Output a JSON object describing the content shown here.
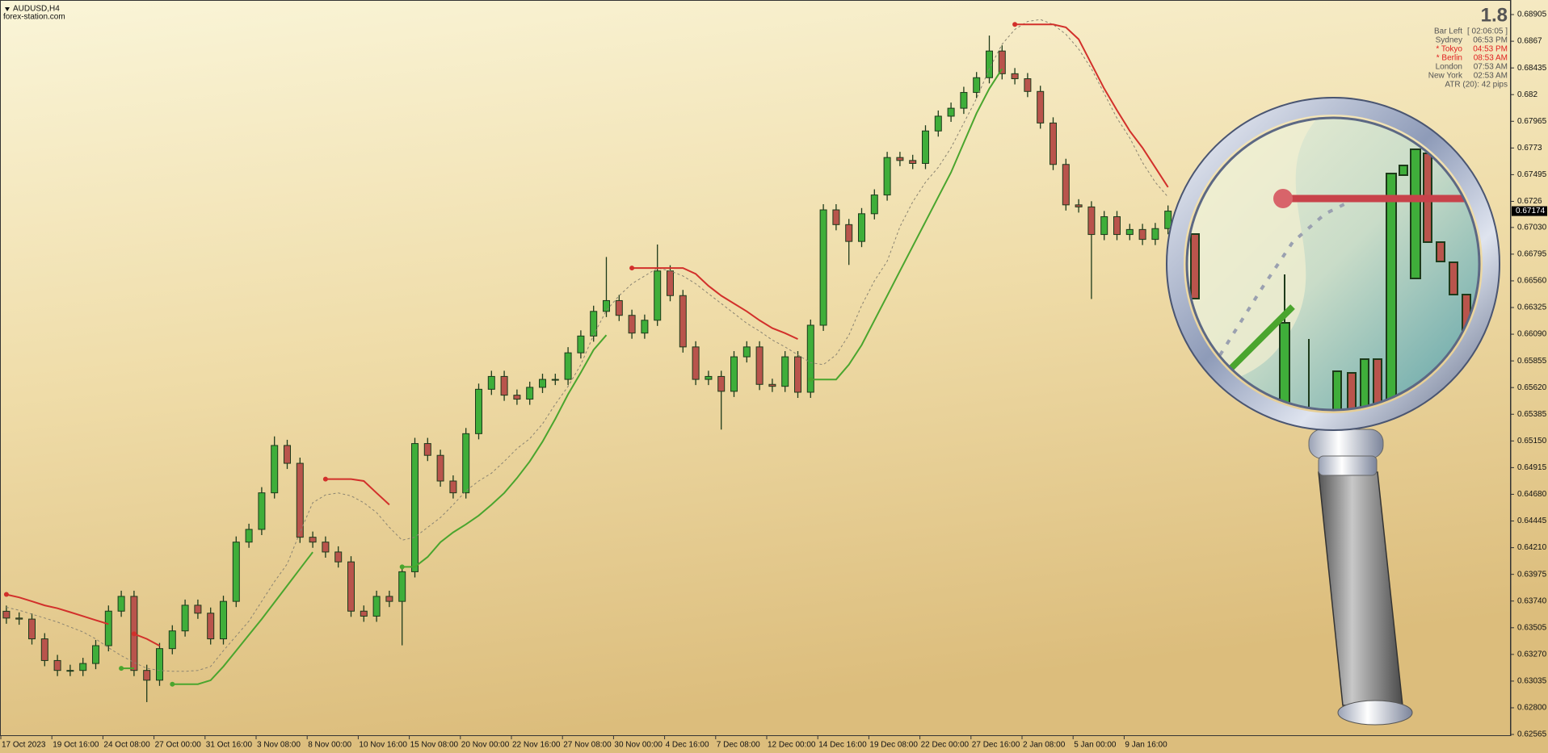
{
  "chart_data": {
    "type": "candlestick",
    "symbol": "AUDUSD,H4",
    "source": "forex-station.com",
    "categories": [
      "17 Oct 2023",
      null,
      null,
      null,
      "19 Oct 16:00",
      null,
      null,
      null,
      "24 Oct 08:00",
      null,
      null,
      null,
      "27 Oct 00:00",
      null,
      null,
      null,
      "31 Oct 16:00",
      null,
      null,
      null,
      "3 Nov 08:00",
      null,
      null,
      null,
      "8 Nov 00:00",
      null,
      null,
      null,
      "10 Nov 16:00",
      null,
      null,
      null,
      "15 Nov 08:00",
      null,
      null,
      null,
      "20 Nov 00:00",
      null,
      null,
      null,
      "22 Nov 16:00",
      null,
      null,
      null,
      "27 Nov 08:00",
      null,
      null,
      null,
      "30 Nov 00:00",
      null,
      null,
      null,
      "4 Dec 16:00",
      null,
      null,
      null,
      "7 Dec 08:00",
      null,
      null,
      null,
      "12 Dec 00:00",
      null,
      null,
      null,
      "14 Dec 16:00",
      null,
      null,
      null,
      "19 Dec 08:00",
      null,
      null,
      null,
      "22 Dec 00:00",
      null,
      null,
      null,
      "27 Dec 16:00",
      null,
      null,
      null,
      "2 Jan 08:00",
      null,
      null,
      null,
      "5 Jan 00:00",
      null,
      null,
      null,
      "9 Jan 16:00",
      null,
      null,
      null
    ],
    "open": [
      0.6365,
      0.6359,
      0.63581,
      0.63407,
      0.63216,
      0.63129,
      0.63129,
      0.6319,
      0.63347,
      0.63651,
      0.63781,
      0.63129,
      0.63043,
      0.63321,
      0.63477,
      0.63703,
      0.63633,
      0.63407,
      0.63737,
      0.64259,
      0.64371,
      0.64693,
      0.6511,
      0.64953,
      0.64302,
      0.64259,
      0.64172,
      0.64085,
      0.63651,
      0.63607,
      0.63781,
      0.63737,
      0.63998,
      0.65127,
      0.65023,
      0.64797,
      0.64693,
      0.65214,
      0.65605,
      0.65718,
      0.65553,
      0.65518,
      0.65622,
      0.65692,
      0.65692,
      0.65926,
      0.66074,
      0.66291,
      0.66386,
      0.66256,
      0.661,
      0.66213,
      0.66647,
      0.6643,
      0.65978,
      0.65692,
      0.65718,
      0.65587,
      0.65891,
      0.65978,
      0.65648,
      0.65631,
      0.65891,
      0.65579,
      0.66169,
      0.67185,
      0.67055,
      0.66907,
      0.67151,
      0.67316,
      0.67646,
      0.6762,
      0.67594,
      0.6788,
      0.6801,
      0.6808,
      0.68219,
      0.68349,
      0.68584,
      0.68384,
      0.6834,
      0.68228,
      0.6795,
      0.67585,
      0.67229,
      0.67211,
      0.66968,
      0.67125,
      0.66968,
      0.67012,
      0.66925,
      0.6702
    ],
    "high": [
      0.637,
      0.6364,
      0.63631,
      0.63457,
      0.63266,
      0.63179,
      0.6324,
      0.63397,
      0.63701,
      0.63831,
      0.63831,
      0.63179,
      0.63371,
      0.63527,
      0.63753,
      0.63753,
      0.63683,
      0.63787,
      0.64309,
      0.64421,
      0.64743,
      0.6519,
      0.6516,
      0.65003,
      0.64352,
      0.64309,
      0.64222,
      0.64135,
      0.63701,
      0.63831,
      0.63831,
      0.64048,
      0.65177,
      0.65177,
      0.65073,
      0.64847,
      0.65264,
      0.65655,
      0.65768,
      0.65768,
      0.65603,
      0.65672,
      0.65742,
      0.65742,
      0.65976,
      0.66124,
      0.66341,
      0.6677,
      0.66436,
      0.66306,
      0.66263,
      0.6688,
      0.66697,
      0.6648,
      0.66028,
      0.65768,
      0.65768,
      0.65941,
      0.66028,
      0.66028,
      0.65698,
      0.65941,
      0.65941,
      0.66219,
      0.67235,
      0.67235,
      0.67105,
      0.67201,
      0.67366,
      0.67696,
      0.67696,
      0.6767,
      0.6793,
      0.6806,
      0.6813,
      0.68269,
      0.68399,
      0.6872,
      0.68634,
      0.68434,
      0.6839,
      0.68278,
      0.68,
      0.67635,
      0.67279,
      0.67261,
      0.67175,
      0.67175,
      0.67062,
      0.67062,
      0.6707,
      0.67224
    ],
    "low": [
      0.6354,
      0.63531,
      0.63357,
      0.63166,
      0.63079,
      0.63079,
      0.63079,
      0.6314,
      0.63297,
      0.63601,
      0.63079,
      0.6285,
      0.62993,
      0.63271,
      0.63427,
      0.63583,
      0.63357,
      0.63357,
      0.63687,
      0.64209,
      0.64321,
      0.64643,
      0.64903,
      0.64252,
      0.64209,
      0.64122,
      0.64035,
      0.63601,
      0.63557,
      0.63557,
      0.63687,
      0.6335,
      0.63948,
      0.64973,
      0.64747,
      0.64643,
      0.64643,
      0.65164,
      0.65555,
      0.65503,
      0.65468,
      0.65468,
      0.65572,
      0.65642,
      0.65642,
      0.65876,
      0.66024,
      0.66241,
      0.66206,
      0.6605,
      0.6605,
      0.66163,
      0.6638,
      0.65928,
      0.65642,
      0.65642,
      0.6525,
      0.65537,
      0.65841,
      0.65598,
      0.65581,
      0.65581,
      0.65529,
      0.65529,
      0.66119,
      0.67005,
      0.667,
      0.66857,
      0.67101,
      0.67266,
      0.6757,
      0.67544,
      0.67544,
      0.6783,
      0.6796,
      0.6803,
      0.68169,
      0.68299,
      0.68334,
      0.6829,
      0.68178,
      0.679,
      0.67535,
      0.67179,
      0.67161,
      0.664,
      0.66918,
      0.66918,
      0.66918,
      0.66875,
      0.66875,
      0.6697
    ],
    "close": [
      0.6359,
      0.63581,
      0.63407,
      0.63216,
      0.63129,
      0.63129,
      0.6319,
      0.63347,
      0.63651,
      0.63781,
      0.63129,
      0.63043,
      0.63321,
      0.63477,
      0.63703,
      0.63633,
      0.63407,
      0.63737,
      0.64259,
      0.64371,
      0.64693,
      0.6511,
      0.64953,
      0.64302,
      0.64259,
      0.64172,
      0.64085,
      0.63651,
      0.63607,
      0.63781,
      0.63737,
      0.63998,
      0.65127,
      0.65023,
      0.64797,
      0.64693,
      0.65214,
      0.65605,
      0.65718,
      0.65553,
      0.65518,
      0.65622,
      0.65692,
      0.65692,
      0.65926,
      0.66074,
      0.66291,
      0.66386,
      0.66256,
      0.661,
      0.66213,
      0.66647,
      0.6643,
      0.65978,
      0.65692,
      0.65718,
      0.65587,
      0.65891,
      0.65978,
      0.65648,
      0.65631,
      0.65891,
      0.65579,
      0.66169,
      0.67185,
      0.67055,
      0.66907,
      0.67151,
      0.67316,
      0.67646,
      0.6762,
      0.67594,
      0.6788,
      0.6801,
      0.6808,
      0.68219,
      0.68349,
      0.68584,
      0.68384,
      0.6834,
      0.68228,
      0.6795,
      0.67585,
      0.67229,
      0.67211,
      0.66968,
      0.67125,
      0.66968,
      0.67012,
      0.66925,
      0.6702,
      0.67174
    ],
    "bull_color": "#3fae3a",
    "bear_color": "#b9544c",
    "outline_color": "#1d3a1a",
    "lines": [
      {
        "color": "#8a8472",
        "dashed": true,
        "values": [
          0.63685,
          0.63659,
          0.63624,
          0.6359,
          0.63555,
          0.63511,
          0.63468,
          0.63407,
          0.63329,
          0.63259,
          0.63199,
          0.63147,
          0.63129,
          0.63121,
          0.63121,
          0.63129,
          0.63164,
          0.63303,
          0.63433,
          0.63563,
          0.63737,
          0.63911,
          0.64067,
          0.64345,
          0.64606,
          0.64675,
          0.64692,
          0.64666,
          0.64606,
          0.64519,
          0.64389,
          0.64276,
          0.64302,
          0.64389,
          0.64475,
          0.64588,
          0.6471,
          0.64797,
          0.64866,
          0.6497,
          0.65083,
          0.6517,
          0.653,
          0.65474,
          0.6563,
          0.65822,
          0.66082,
          0.66299,
          0.66429,
          0.66534,
          0.66603,
          0.66673,
          0.66647,
          0.66603,
          0.66534,
          0.66447,
          0.6636,
          0.66273,
          0.66186,
          0.66117,
          0.66039,
          0.65978,
          0.65908,
          0.65839,
          0.65822,
          0.65908,
          0.66082,
          0.66343,
          0.6656,
          0.66733,
          0.67037,
          0.67255,
          0.67428,
          0.67559,
          0.67732,
          0.67949,
          0.68166,
          0.68427,
          0.68644,
          0.68774,
          0.68844,
          0.68861,
          0.68818,
          0.68731,
          0.68601,
          0.68427,
          0.6821,
          0.67993,
          0.67819,
          0.67602,
          0.67428,
          0.67298
        ]
      },
      {
        "color": "#d2302b",
        "dashed": false,
        "values": [
          0.63798,
          0.63772,
          0.63737,
          0.63702,
          0.63676,
          0.63642,
          0.63607,
          0.63572,
          0.63537,
          null,
          0.63451,
          0.63407,
          0.63346,
          null,
          null,
          null,
          null,
          null,
          null,
          null,
          null,
          null,
          null,
          null,
          null,
          0.64814,
          0.64814,
          0.64814,
          0.64797,
          0.64692,
          0.64588,
          null,
          null,
          null,
          null,
          null,
          null,
          null,
          null,
          null,
          null,
          null,
          null,
          null,
          null,
          null,
          null,
          null,
          null,
          0.66673,
          0.66673,
          0.66673,
          0.66673,
          0.66673,
          0.66621,
          0.66516,
          0.66429,
          0.6636,
          0.66291,
          0.66212,
          0.66143,
          0.66099,
          0.66047,
          null,
          null,
          null,
          null,
          null,
          null,
          null,
          null,
          null,
          null,
          null,
          null,
          null,
          null,
          null,
          null,
          0.68818,
          0.68818,
          0.68818,
          0.68818,
          0.68792,
          0.68688,
          0.6847,
          0.68253,
          0.68062,
          0.6788,
          0.67732,
          0.67559,
          0.67385
        ]
      },
      {
        "color": "#4aa52e",
        "dashed": false,
        "values": [
          null,
          null,
          null,
          null,
          null,
          null,
          null,
          null,
          null,
          0.63147,
          0.63147,
          null,
          null,
          0.63008,
          0.63008,
          0.63008,
          0.63042,
          0.63164,
          0.63303,
          0.63442,
          0.63581,
          0.63728,
          0.63876,
          0.64024,
          0.64171,
          null,
          null,
          null,
          null,
          null,
          null,
          0.64041,
          0.64041,
          0.64128,
          0.64258,
          0.64345,
          0.64415,
          0.64493,
          0.64588,
          0.64692,
          0.64823,
          0.6497,
          0.65144,
          0.65344,
          0.65561,
          0.65752,
          0.65952,
          0.66082,
          null,
          null,
          null,
          null,
          null,
          null,
          null,
          null,
          null,
          null,
          null,
          null,
          null,
          null,
          null,
          0.65691,
          0.65691,
          0.65691,
          0.65822,
          0.65995,
          0.66212,
          0.66429,
          0.66647,
          0.66864,
          0.67081,
          0.67298,
          0.67515,
          0.67776,
          0.68036,
          0.68253,
          0.68427,
          null,
          null,
          null,
          null,
          null,
          null,
          null,
          null,
          null,
          null,
          null,
          null,
          null
        ]
      }
    ],
    "ylim": [
      0.62551,
      0.69019
    ],
    "yticks": [
      0.68905,
      0.6867,
      0.68435,
      0.682,
      0.67965,
      0.6773,
      0.67495,
      0.6726,
      {
        "value": 0.6703,
        "label": "0.67030"
      },
      0.66795,
      {
        "value": 0.6656,
        "label": "0.66560"
      },
      0.66325,
      {
        "value": 0.6609,
        "label": "0.66090"
      },
      0.65855,
      {
        "value": 0.6562,
        "label": "0.65620"
      },
      0.65385,
      {
        "value": 0.6515,
        "label": "0.65150"
      },
      0.64915,
      {
        "value": 0.6468,
        "label": "0.64680"
      },
      0.64445,
      {
        "value": 0.6421,
        "label": "0.64210"
      },
      0.63975,
      {
        "value": 0.6374,
        "label": "0.63740"
      },
      0.63505,
      {
        "value": 0.6327,
        "label": "0.63270"
      },
      0.63035,
      {
        "value": 0.628,
        "label": "0.62800"
      },
      0.62565
    ],
    "current_price": 0.67174
  },
  "info": {
    "version": "1.8",
    "rows": [
      {
        "label": "Bar Left",
        "value": "[ 02:06:05 ]",
        "color": "#555555"
      },
      {
        "label": "Sydney",
        "value": "06:53 PM",
        "color": "#555555"
      },
      {
        "label": "* Tokyo",
        "value": "04:53 PM",
        "color": "#e02020"
      },
      {
        "label": "* Berlin",
        "value": "08:53 AM",
        "color": "#e02020"
      },
      {
        "label": "London",
        "value": "07:53 AM",
        "color": "#555555"
      },
      {
        "label": "New York",
        "value": "02:53 AM",
        "color": "#555555"
      }
    ],
    "atr": "ATR (20): 42 pips"
  }
}
